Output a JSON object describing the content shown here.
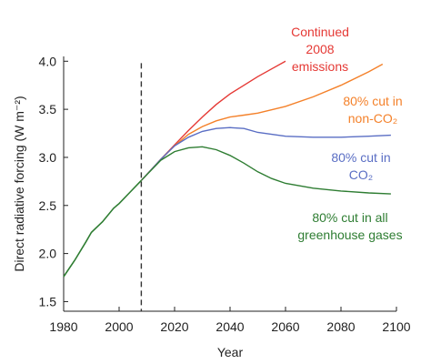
{
  "chart_data": {
    "type": "line",
    "xlabel": "Year",
    "ylabel": "Direct radiative forcing (W m⁻²)",
    "xlim": [
      1980,
      2100
    ],
    "ylim": [
      1.4,
      4.05
    ],
    "x_ticks": [
      1980,
      2000,
      2020,
      2040,
      2060,
      2080,
      2100
    ],
    "y_ticks": [
      1.5,
      2.0,
      2.5,
      3.0,
      3.5,
      4.0
    ],
    "x_tick_labels": [
      "1980",
      "2000",
      "2020",
      "2040",
      "2060",
      "2080",
      "2100"
    ],
    "y_tick_labels": [
      "1.5",
      "2.0",
      "2.5",
      "3.0",
      "3.5",
      "4.0"
    ],
    "reference_line": {
      "x": 2008,
      "style": "dashed",
      "color": "#333333"
    },
    "grid": false,
    "historical": {
      "color": "#2e7d32",
      "x": [
        1980,
        1984,
        1988,
        1990,
        1994,
        1998,
        2000,
        2004,
        2008
      ],
      "y": [
        1.76,
        1.93,
        2.12,
        2.22,
        2.33,
        2.47,
        2.52,
        2.64,
        2.76
      ]
    },
    "series": [
      {
        "key": "continued",
        "color": "#e53935",
        "label_lines": [
          "Continued",
          "2008",
          "emissions"
        ],
        "x": [
          2008,
          2015,
          2020,
          2025,
          2030,
          2035,
          2040,
          2045,
          2050,
          2055,
          2060
        ],
        "y": [
          2.76,
          2.98,
          3.13,
          3.28,
          3.42,
          3.55,
          3.66,
          3.75,
          3.84,
          3.92,
          4.0
        ]
      },
      {
        "key": "cut_non_co2",
        "color": "#f4812a",
        "label_lines": [
          "80% cut in",
          "non-CO₂"
        ],
        "x": [
          2008,
          2015,
          2020,
          2025,
          2030,
          2035,
          2040,
          2045,
          2050,
          2060,
          2070,
          2080,
          2090,
          2095
        ],
        "y": [
          2.76,
          2.98,
          3.12,
          3.24,
          3.32,
          3.38,
          3.42,
          3.44,
          3.46,
          3.53,
          3.63,
          3.75,
          3.89,
          3.97
        ]
      },
      {
        "key": "cut_co2",
        "color": "#5a6ec4",
        "label_lines": [
          "80% cut in",
          "CO₂"
        ],
        "x": [
          2008,
          2015,
          2020,
          2025,
          2030,
          2035,
          2040,
          2045,
          2050,
          2060,
          2070,
          2080,
          2090,
          2098
        ],
        "y": [
          2.76,
          2.98,
          3.12,
          3.21,
          3.27,
          3.3,
          3.31,
          3.3,
          3.26,
          3.22,
          3.21,
          3.21,
          3.22,
          3.23
        ]
      },
      {
        "key": "cut_all",
        "color": "#2e7d32",
        "label_lines": [
          "80% cut in all",
          "greenhouse gases"
        ],
        "x": [
          2008,
          2015,
          2020,
          2025,
          2030,
          2035,
          2040,
          2045,
          2050,
          2055,
          2060,
          2070,
          2080,
          2090,
          2098
        ],
        "y": [
          2.76,
          2.97,
          3.06,
          3.1,
          3.11,
          3.08,
          3.02,
          2.94,
          2.85,
          2.78,
          2.73,
          2.68,
          2.65,
          2.63,
          2.62
        ]
      }
    ]
  }
}
